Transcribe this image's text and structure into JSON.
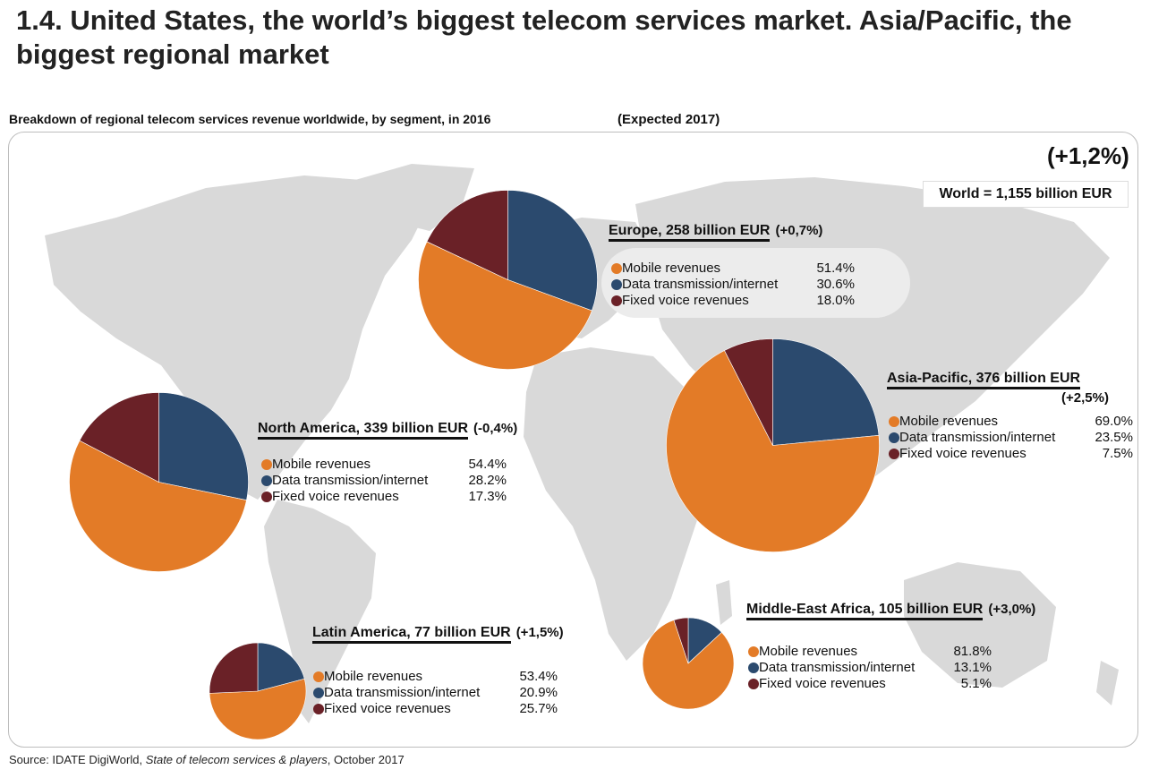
{
  "title": "1.4. United States, the world’s biggest telecom services market. Asia/Pacific, the biggest regional market",
  "subtitle": "Breakdown of regional telecom services revenue worldwide, by segment, in 2016",
  "expected_label": "(Expected 2017)",
  "world": {
    "growth": "(+1,2%)",
    "total": "World = 1,155 billion EUR"
  },
  "colors": {
    "mobile": "#e37b27",
    "data": "#2b4a6e",
    "fixed": "#6a2127",
    "map": "#d9d9d9"
  },
  "source": {
    "prefix": "Source: IDATE DigiWorld, ",
    "title": "State of telecom services & players",
    "suffix": ", October 2017"
  },
  "chart_data": {
    "type": "pie",
    "title": "Breakdown of regional telecom services revenue worldwide, by segment, in 2016",
    "segments": [
      "Mobile revenues",
      "Data transmission/internet",
      "Fixed voice revenues"
    ],
    "regions": [
      {
        "key": "europe",
        "name": "Europe, 258 billion EUR",
        "revenue_billion_eur": 258,
        "growth_2017": "(+0,7%)",
        "values": [
          51.4,
          30.6,
          18.0
        ],
        "value_labels": [
          "51.4%",
          "30.6%",
          "18.0%"
        ]
      },
      {
        "key": "north_america",
        "name": "North America, 339 billion EUR",
        "revenue_billion_eur": 339,
        "growth_2017": "(-0,4%)",
        "values": [
          54.4,
          28.2,
          17.3
        ],
        "value_labels": [
          "54.4%",
          "28.2%",
          "17.3%"
        ]
      },
      {
        "key": "asia_pacific",
        "name": "Asia-Pacific, 376 billion EUR",
        "revenue_billion_eur": 376,
        "growth_2017": "(+2,5%)",
        "values": [
          69.0,
          23.5,
          7.5
        ],
        "value_labels": [
          "69.0%",
          "23.5%",
          "7.5%"
        ]
      },
      {
        "key": "latin_america",
        "name": "Latin America, 77 billion EUR",
        "revenue_billion_eur": 77,
        "growth_2017": "(+1,5%)",
        "values": [
          53.4,
          20.9,
          25.7
        ],
        "value_labels": [
          "53.4%",
          "20.9%",
          "25.7%"
        ]
      },
      {
        "key": "mea",
        "name": "Middle-East Africa, 105 billion EUR",
        "revenue_billion_eur": 105,
        "growth_2017": "(+3,0%)",
        "values": [
          81.8,
          13.1,
          5.1
        ],
        "value_labels": [
          "81.8%",
          "13.1%",
          "5.1%"
        ]
      }
    ]
  }
}
